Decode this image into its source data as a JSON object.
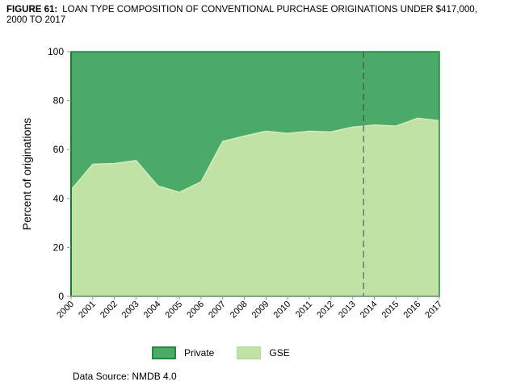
{
  "title": {
    "label": "FIGURE 61:",
    "text": "LOAN TYPE COMPOSITION OF CONVENTIONAL PURCHASE ORIGINATIONS UNDER $417,000, 2000 TO 2017"
  },
  "source": "Data Source: NMDB 4.0",
  "chart_data": {
    "type": "area",
    "stacked": true,
    "ylabel": "Percent of originations",
    "xlabel": "",
    "ylim": [
      0,
      100
    ],
    "yticks": [
      0,
      20,
      40,
      60,
      80,
      100
    ],
    "x": [
      "2000",
      "2001",
      "2002",
      "2003",
      "2004",
      "2005",
      "2006",
      "2007",
      "2008",
      "2009",
      "2010",
      "2011",
      "2012",
      "2013",
      "2014",
      "2015",
      "2016",
      "2017"
    ],
    "series": [
      {
        "name": "GSE",
        "color": "#c0e3a5",
        "values": [
          43.5,
          54,
          54.3,
          55.5,
          45.2,
          42.5,
          46.8,
          63.3,
          65.5,
          67.5,
          66.6,
          67.5,
          67.2,
          69.2,
          70,
          69.6,
          72.8,
          71.8
        ]
      },
      {
        "name": "Private",
        "color": "#4caa68",
        "values": [
          56.5,
          46,
          45.7,
          44.5,
          54.8,
          57.5,
          53.2,
          36.7,
          34.5,
          32.5,
          33.4,
          32.5,
          32.8,
          30.8,
          30,
          30.4,
          27.2,
          28.2
        ]
      }
    ],
    "reference_line": {
      "x": 2013.5,
      "style": "dashed"
    },
    "grid": false,
    "legend_placement": "bottom"
  }
}
